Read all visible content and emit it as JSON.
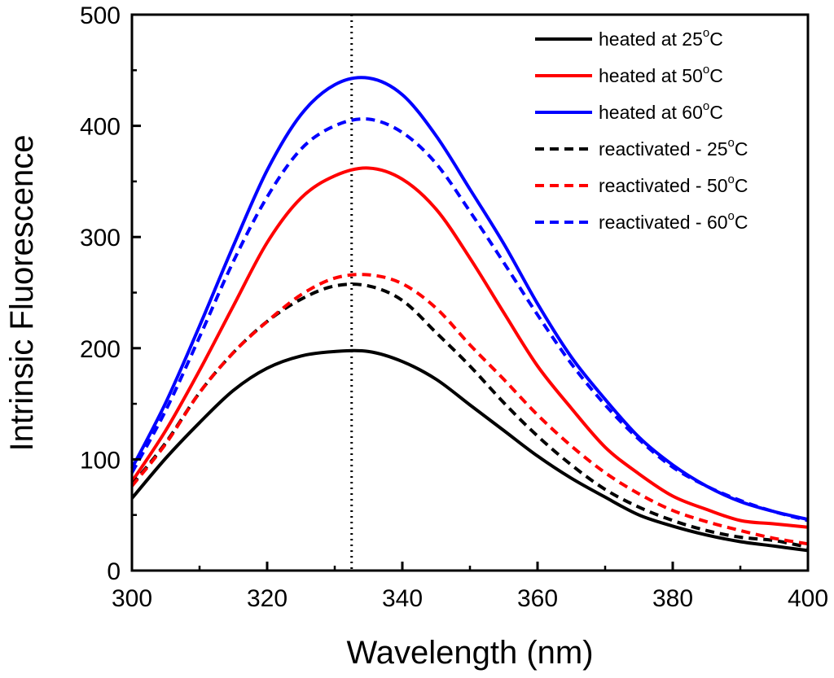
{
  "chart_data": {
    "type": "line",
    "title": "",
    "xlabel": "Wavelength (nm)",
    "ylabel": "Intrinsic Fluorescence",
    "xlim": [
      300,
      400
    ],
    "ylim": [
      0,
      500
    ],
    "x_ticks": [
      300,
      320,
      340,
      360,
      380,
      400
    ],
    "y_ticks": [
      0,
      100,
      200,
      300,
      400,
      500
    ],
    "x_tick_labels": [
      "300",
      "320",
      "340",
      "360",
      "380",
      "400"
    ],
    "y_tick_labels": [
      "0",
      "100",
      "200",
      "300",
      "400",
      "500"
    ],
    "grid": false,
    "legend_position": "top-right",
    "reference_line": {
      "x": 332.5,
      "style": "dotted",
      "color": "#000000"
    },
    "x": [
      300,
      305,
      310,
      315,
      320,
      325,
      330,
      335,
      340,
      345,
      350,
      355,
      360,
      365,
      370,
      375,
      380,
      385,
      390,
      395,
      400
    ],
    "series": [
      {
        "name": "heated at 25°C",
        "label": "heated at 25",
        "unit": "C",
        "degree": "o",
        "color": "#000000",
        "dash": "solid",
        "values": [
          65,
          101,
          133,
          162,
          182,
          193,
          197,
          197,
          188,
          172,
          149,
          126,
          103,
          83,
          66,
          50,
          40,
          32,
          26,
          22,
          18
        ]
      },
      {
        "name": "heated at 50°C",
        "label": "heated at 50",
        "unit": "C",
        "degree": "o",
        "color": "#ff0000",
        "dash": "solid",
        "values": [
          80,
          126,
          180,
          238,
          295,
          335,
          355,
          362,
          352,
          325,
          281,
          232,
          184,
          146,
          111,
          87,
          67,
          55,
          45,
          42,
          39
        ]
      },
      {
        "name": "heated at 60°C",
        "label": "heated at 60",
        "unit": "C",
        "degree": "o",
        "color": "#0000ff",
        "dash": "solid",
        "values": [
          92,
          151,
          220,
          292,
          360,
          410,
          437,
          443,
          428,
          391,
          343,
          294,
          240,
          192,
          154,
          120,
          95,
          76,
          62,
          53,
          46
        ]
      },
      {
        "name": "reactivated - 25°C",
        "label": "reactivated - 25",
        "unit": "C",
        "degree": "o",
        "color": "#000000",
        "dash": "dashed",
        "values": [
          77,
          115,
          160,
          196,
          224,
          244,
          256,
          256,
          243,
          214,
          184,
          151,
          121,
          95,
          73,
          57,
          45,
          36,
          30,
          27,
          21
        ]
      },
      {
        "name": "reactivated - 50°C",
        "label": "reactivated - 50",
        "unit": "C",
        "degree": "o",
        "color": "#ff0000",
        "dash": "dashed",
        "values": [
          76,
          114,
          160,
          196,
          224,
          248,
          263,
          266,
          258,
          236,
          203,
          172,
          140,
          112,
          88,
          69,
          54,
          44,
          36,
          29,
          24
        ]
      },
      {
        "name": "reactivated - 60°C",
        "label": "reactivated - 60",
        "unit": "C",
        "degree": "o",
        "color": "#0000ff",
        "dash": "dashed",
        "values": [
          88,
          144,
          210,
          278,
          336,
          379,
          400,
          406,
          394,
          366,
          323,
          277,
          230,
          186,
          149,
          118,
          93,
          76,
          63,
          53,
          45
        ]
      }
    ]
  }
}
